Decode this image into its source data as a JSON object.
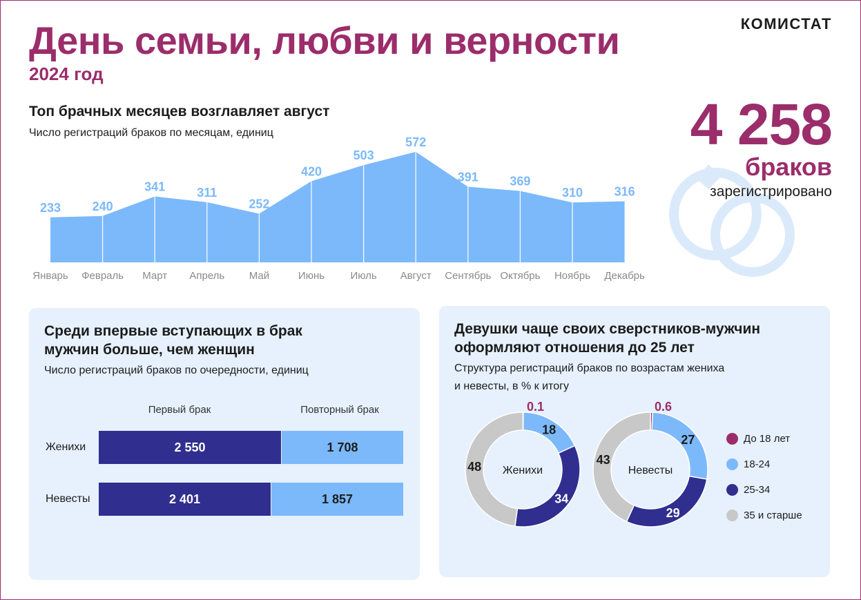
{
  "brand": "КОМИСТАТ",
  "title": "День семьи, любви и верности",
  "year": "2024 год",
  "top": {
    "title": "Топ брачных месяцев возглавляет август",
    "subtitle": "Число регистраций браков по месяцам, единиц"
  },
  "total": {
    "value": "4 258",
    "unit": "браков",
    "text": "зарегистрировано"
  },
  "colors": {
    "accent": "#9b2d6b",
    "area": "#7cb9fb",
    "area_label": "#7cb9fb",
    "dark_blue": "#302e8e",
    "light_blue": "#7cb9fb",
    "gray": "#c8c8c8",
    "panel": "#e6f1fd",
    "ring": "#dbeafb"
  },
  "icons": {
    "rings": "wedding-rings-icon"
  },
  "order_panel": {
    "title_line1": "Среди впервые вступающих в брак",
    "title_line2": "мужчин больше, чем женщин",
    "subtitle": "Число регистраций браков по очередности, единиц",
    "col_first": "Первый брак",
    "col_repeat": "Повторный брак",
    "rows": [
      {
        "label": "Женихи",
        "first": 2550,
        "first_label": "2 550",
        "repeat": 1708,
        "repeat_label": "1 708"
      },
      {
        "label": "Невесты",
        "first": 2401,
        "first_label": "2 401",
        "repeat": 1857,
        "repeat_label": "1 857"
      }
    ]
  },
  "age_panel": {
    "title_line1": "Девушки чаще своих сверстников-мужчин",
    "title_line2": "оформляют отношения до 25 лет",
    "subtitle_line1": "Структура регистраций браков по возрастам жениха",
    "subtitle_line2": "и невесты, в % к итогу"
  },
  "legend": [
    {
      "label": "До 18 лет",
      "color": "#9b2d6b"
    },
    {
      "label": "18-24",
      "color": "#7cb9fb"
    },
    {
      "label": "25-34",
      "color": "#302e8e"
    },
    {
      "label": "35 и старше",
      "color": "#c8c8c8"
    }
  ],
  "chart_data": [
    {
      "type": "area",
      "categories": [
        "Январь",
        "Февраль",
        "Март",
        "Апрель",
        "Май",
        "Июнь",
        "Июль",
        "Август",
        "Сентябрь",
        "Октябрь",
        "Ноябрь",
        "Декабрь"
      ],
      "values": [
        233,
        240,
        341,
        311,
        252,
        420,
        503,
        572,
        391,
        369,
        310,
        316
      ],
      "title": "Топ брачных месяцев возглавляет август",
      "subtitle": "Число регистраций браков по месяцам, единиц",
      "ylim": [
        0,
        600
      ],
      "grid": false,
      "legend": "none"
    },
    {
      "type": "bar",
      "orientation": "horizontal-stacked",
      "categories": [
        "Женихи",
        "Невесты"
      ],
      "series": [
        {
          "name": "Первый брак",
          "values": [
            2550,
            2401
          ]
        },
        {
          "name": "Повторный брак",
          "values": [
            1708,
            1857
          ]
        }
      ],
      "title": "Среди впервые вступающих в брак мужчин больше, чем женщин",
      "subtitle": "Число регистраций браков по очередности, единиц"
    },
    {
      "type": "pie",
      "variant": "donut",
      "title": "Девушки чаще своих сверстников-мужчин оформляют отношения до 25 лет",
      "subtitle": "Структура регистраций браков по возрастам жениха и невесты, в % к итогу",
      "legend": "right",
      "donuts": [
        {
          "name": "Женихи",
          "slices": [
            {
              "label": "До 18 лет",
              "value": 0.1,
              "text": "0.1"
            },
            {
              "label": "18-24",
              "value": 18,
              "text": "18"
            },
            {
              "label": "25-34",
              "value": 34,
              "text": "34"
            },
            {
              "label": "35 и старше",
              "value": 48,
              "text": "48"
            }
          ]
        },
        {
          "name": "Невесты",
          "slices": [
            {
              "label": "До 18 лет",
              "value": 0.6,
              "text": "0.6"
            },
            {
              "label": "18-24",
              "value": 27,
              "text": "27"
            },
            {
              "label": "25-34",
              "value": 29,
              "text": "29"
            },
            {
              "label": "35 и старше",
              "value": 43,
              "text": "43"
            }
          ]
        }
      ]
    }
  ]
}
